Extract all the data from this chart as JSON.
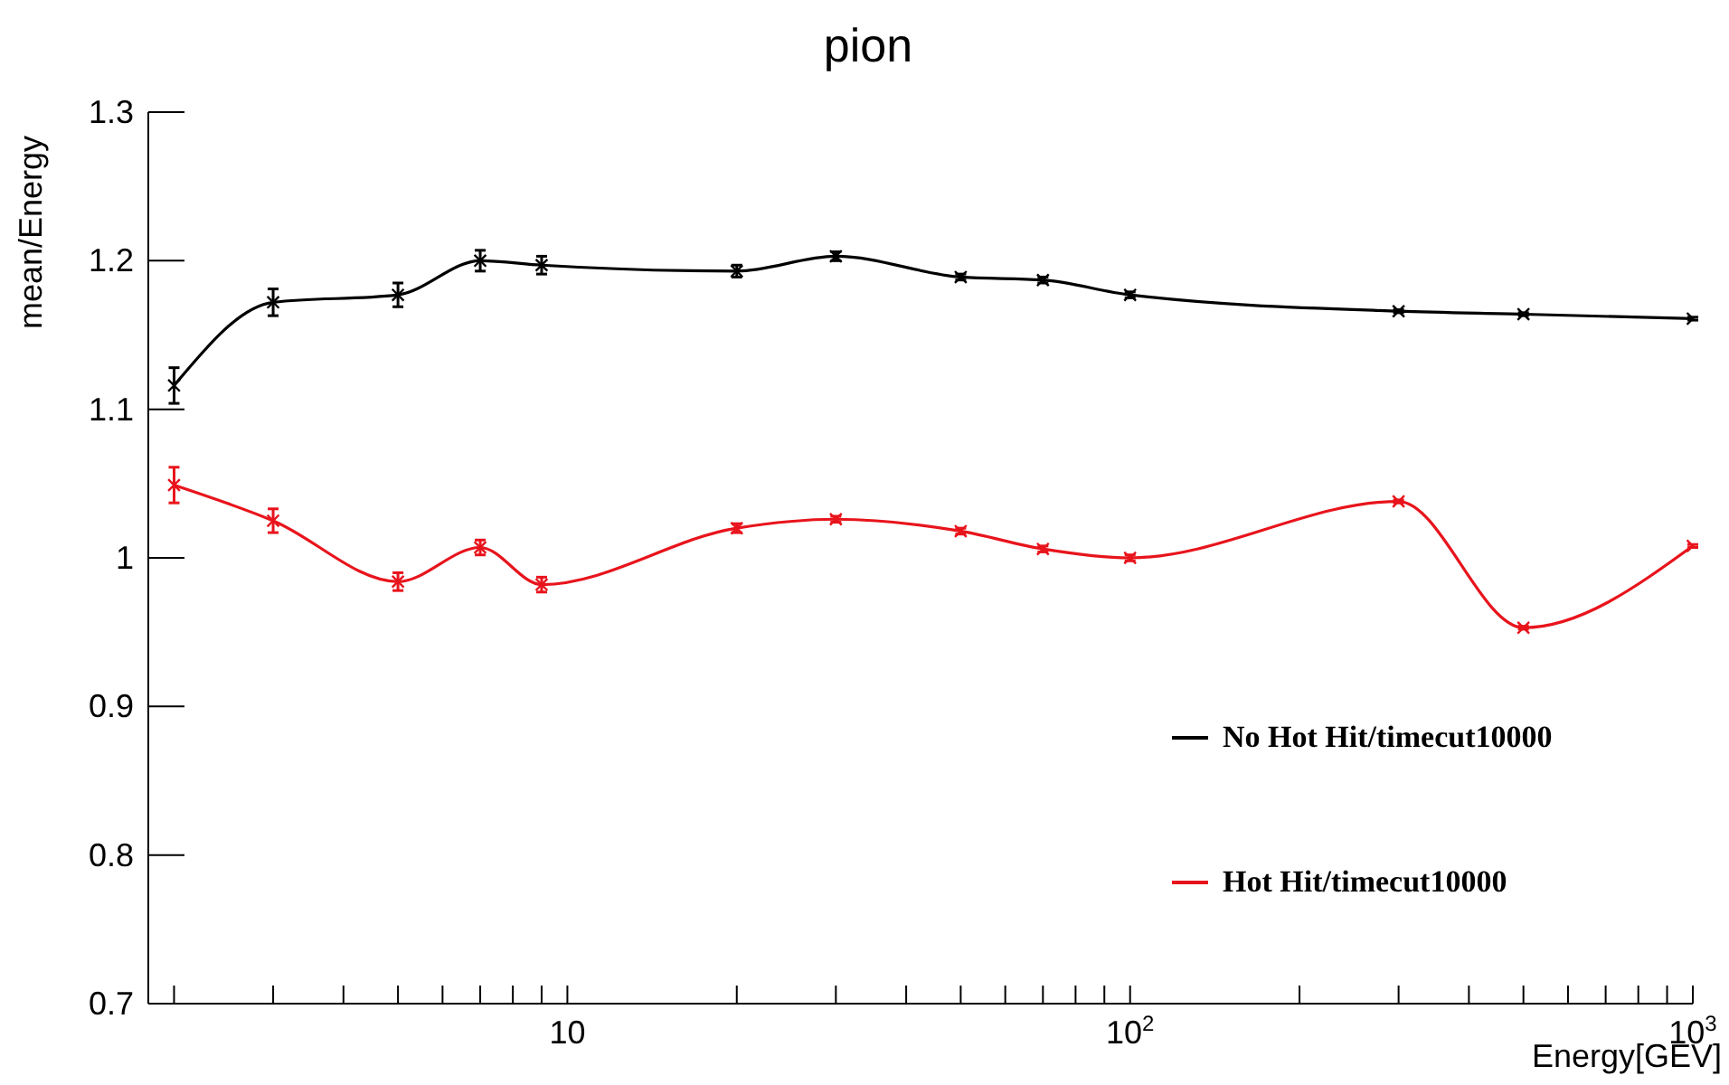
{
  "chart_data": {
    "type": "line",
    "title": "pion",
    "xlabel": "Energy[GEV]",
    "ylabel": "mean/Energy",
    "x": [
      2,
      3,
      5,
      7,
      9,
      20,
      30,
      50,
      70,
      100,
      300,
      500,
      1000
    ],
    "series": [
      {
        "name": "No Hot Hit/timecut10000",
        "color": "#000000",
        "values": [
          1.116,
          1.172,
          1.177,
          1.2,
          1.197,
          1.193,
          1.203,
          1.189,
          1.187,
          1.177,
          1.166,
          1.164,
          1.161
        ],
        "errors": [
          0.012,
          0.009,
          0.008,
          0.007,
          0.006,
          0.004,
          0.003,
          0.002,
          0.002,
          0.002,
          0.001,
          0.001,
          0.001
        ]
      },
      {
        "name": "Hot Hit/timecut10000",
        "color": "#e8141c",
        "values": [
          1.049,
          1.025,
          0.984,
          1.007,
          0.982,
          1.02,
          1.026,
          1.018,
          1.006,
          1.0,
          1.038,
          0.953,
          1.008
        ],
        "errors": [
          0.012,
          0.008,
          0.006,
          0.005,
          0.005,
          0.003,
          0.002,
          0.002,
          0.002,
          0.002,
          0.001,
          0.001,
          0.001
        ]
      }
    ],
    "log": "x",
    "xlim": [
      1.8,
      1000
    ],
    "xticks": [
      {
        "value": 2,
        "label": null
      },
      {
        "value": 3,
        "label": null
      },
      {
        "value": 4,
        "label": null
      },
      {
        "value": 5,
        "label": null
      },
      {
        "value": 6,
        "label": null
      },
      {
        "value": 7,
        "label": null
      },
      {
        "value": 8,
        "label": null
      },
      {
        "value": 9,
        "label": null
      },
      10,
      {
        "value": 20,
        "label": null
      },
      {
        "value": 30,
        "label": null
      },
      {
        "value": 40,
        "label": null
      },
      {
        "value": 50,
        "label": null
      },
      {
        "value": 60,
        "label": null
      },
      {
        "value": 70,
        "label": null
      },
      {
        "value": 80,
        "label": null
      },
      {
        "value": 90,
        "label": null
      },
      {
        "value": 100,
        "label": "10$^{2}$"
      },
      {
        "value": 200,
        "label": null
      },
      {
        "value": 300,
        "label": null
      },
      {
        "value": 400,
        "label": null
      },
      {
        "value": 500,
        "label": null
      },
      {
        "value": 600,
        "label": null
      },
      {
        "value": 700,
        "label": null
      },
      {
        "value": 800,
        "label": null
      },
      {
        "value": 900,
        "label": null
      },
      {
        "value": 1000,
        "label": "10$^{3}$"
      }
    ],
    "ylim": [
      0.7,
      1.3
    ],
    "yticks": [
      0.7,
      0.8,
      0.9,
      {
        "value": 1,
        "label": "1"
      },
      1.1,
      1.2,
      1.3
    ],
    "legend": "bottom right",
    "marker": "cross",
    "line_style": "solid",
    "grid": false
  }
}
